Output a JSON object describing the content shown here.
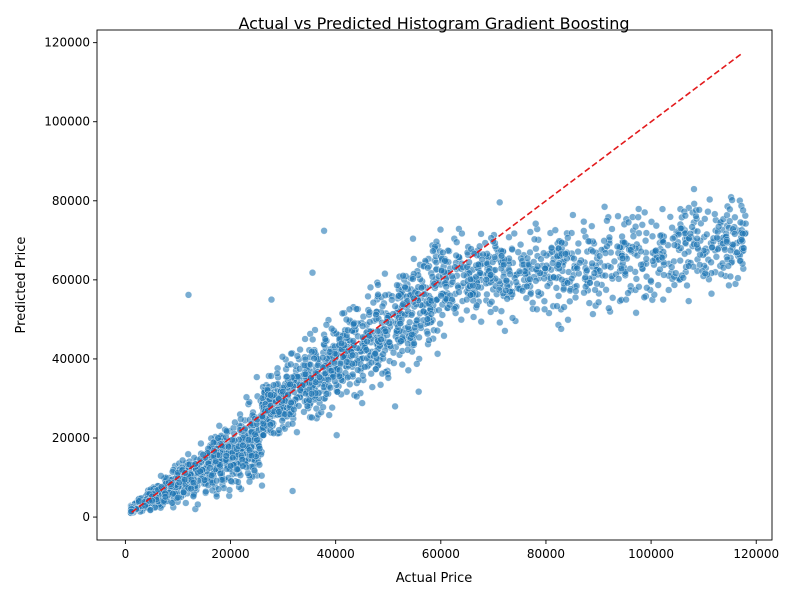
{
  "chart_data": {
    "type": "scatter",
    "title": "Actual vs Predicted Histogram Gradient Boosting",
    "xlabel": "Actual Price",
    "ylabel": "Predicted Price",
    "xlim": [
      -5400,
      123000
    ],
    "ylim": [
      -5800,
      123200
    ],
    "xticks": [
      0,
      20000,
      40000,
      60000,
      80000,
      100000,
      120000
    ],
    "yticks": [
      0,
      20000,
      40000,
      60000,
      80000,
      100000,
      120000
    ],
    "xtick_labels": [
      "0",
      "20000",
      "40000",
      "60000",
      "80000",
      "100000",
      "120000"
    ],
    "ytick_labels": [
      "0",
      "20000",
      "40000",
      "60000",
      "80000",
      "100000",
      "120000"
    ],
    "reference_line": {
      "x": [
        1200,
        117500
      ],
      "y": [
        1200,
        117500
      ],
      "color": "#e31a1c",
      "style": "dashed"
    },
    "marker_color": "#1f77b4",
    "grid": false,
    "legend": "none",
    "clusters": [
      {
        "x_range": [
          1000,
          26000
        ],
        "y_center_slope": 0.72,
        "y_center_offset": 1200,
        "y_spread": 0.45,
        "count": 900
      },
      {
        "x_range": [
          26000,
          60000
        ],
        "y_center_slope": 0.92,
        "y_center_offset": 2500,
        "y_spread": 0.22,
        "count": 900
      },
      {
        "x_range": [
          60000,
          118000
        ],
        "y_center_slope": 0.2,
        "y_center_offset": 47000,
        "y_spread": 0.14,
        "count": 800
      }
    ],
    "points": [
      [
        12000,
        56200
      ],
      [
        37800,
        72400
      ],
      [
        117500,
        77600
      ],
      [
        111500,
        56500
      ],
      [
        114800,
        58600
      ],
      [
        110300,
        61600
      ],
      [
        108700,
        68900
      ],
      [
        71200,
        79600
      ],
      [
        72200,
        47100
      ],
      [
        40200,
        20700
      ],
      [
        51300,
        28000
      ],
      [
        55800,
        31700
      ],
      [
        44000,
        30500
      ],
      [
        31800,
        6600
      ],
      [
        25000,
        35400
      ],
      [
        27800,
        55000
      ],
      [
        35600,
        61800
      ],
      [
        82900,
        47600
      ],
      [
        101000,
        73700
      ],
      [
        93700,
        76100
      ]
    ]
  }
}
